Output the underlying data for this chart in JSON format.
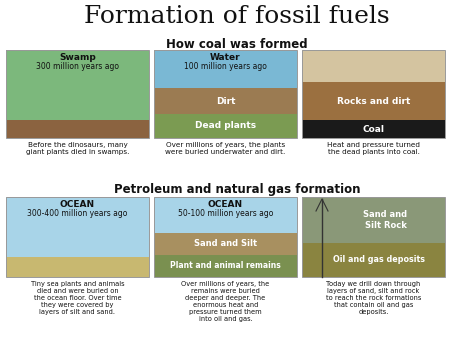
{
  "title": "Formation of fossil fuels",
  "title_fontsize": 18,
  "title_font": "DejaVu Serif",
  "bg_color": "#ffffff",
  "section1_title": "How coal was formed",
  "section2_title": "Petroleum and natural gas formation",
  "coal_panels": [
    {
      "header_line1": "Swamp",
      "header_line2": "300 million years ago",
      "caption": "Before the dinosaurs, many\ngiant plants died in swamps."
    },
    {
      "header_line1": "Water",
      "header_line2": "100 million years ago",
      "caption": "Over millions of years, the plants\nwere buried underwater and dirt."
    },
    {
      "header_line1": "",
      "header_line2": "",
      "caption": "Heat and pressure turned\nthe dead plants into coal."
    }
  ],
  "gas_panels": [
    {
      "header_line1": "OCEAN",
      "header_line2": "300-400 million years ago",
      "caption": "Tiny sea plants and animals\ndied and were buried on\nthe ocean floor. Over time\nthey were covered by\nlayers of silt and sand."
    },
    {
      "header_line1": "OCEAN",
      "header_line2": "50-100 million years ago",
      "caption": "Over millions of years, the\nremains were buried\ndeeper and deeper. The\nenormous heat and\npressure turned them\ninto oil and gas."
    },
    {
      "header_line1": "",
      "header_line2": "",
      "caption": "Today we drill down through\nlayers of sand, silt and rock\nto reach the rock formations\nthat contain oil and gas\ndeposits."
    }
  ],
  "panel_colors": {
    "swamp_top": "#7cb87c",
    "swamp_ground": "#8b6340",
    "water_blue": "#7ab8d4",
    "dirt": "#9b7b52",
    "dead_plants": "#7b9b52",
    "rocks_tree_bg": "#d4c4a0",
    "rocks_layer": "#9b7040",
    "coal_layer": "#1a1a1a",
    "ocean_blue": "#a8d4e8",
    "ocean_floor1": "#c8b870",
    "sand_silt": "#a89060",
    "plant_remains": "#7a9050",
    "sand_silt_rock": "#8a9878",
    "oil_gas": "#8a8440",
    "panel_border": "#aaaaaa",
    "layer_text": "#ffffff",
    "header_text": "#111111",
    "caption_text": "#111111"
  }
}
